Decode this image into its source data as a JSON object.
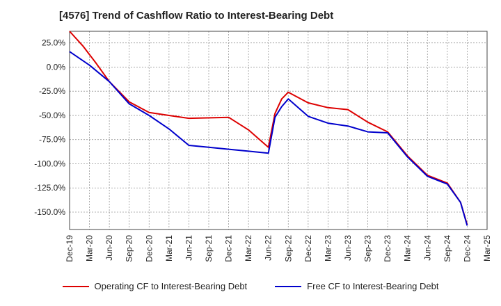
{
  "chart_data": {
    "type": "line",
    "title": "[4576]  Trend of Cashflow Ratio to Interest-Bearing Debt",
    "xlabel": "",
    "ylabel": "",
    "x_ticks": [
      "Dec-19",
      "Mar-20",
      "Jun-20",
      "Sep-20",
      "Dec-20",
      "Mar-21",
      "Jun-21",
      "Sep-21",
      "Dec-21",
      "Mar-22",
      "Jun-22",
      "Sep-22",
      "Dec-22",
      "Mar-23",
      "Jun-23",
      "Sep-23",
      "Dec-23",
      "Mar-24",
      "Jun-24",
      "Sep-24",
      "Dec-24",
      "Mar-25"
    ],
    "y_ticks": [
      "25.0%",
      "0.0%",
      "-25.0%",
      "-50.0%",
      "-75.0%",
      "-100.0%",
      "-125.0%",
      "-150.0%"
    ],
    "y_tick_values": [
      25,
      0,
      -25,
      -50,
      -75,
      -100,
      -125,
      -150
    ],
    "ylim": [
      -168,
      37
    ],
    "grid": true,
    "legend_position": "bottom",
    "series": [
      {
        "name": "Operating CF to Interest-Bearing Debt",
        "color": "#dd0000",
        "points": [
          [
            "Dec-19",
            37
          ],
          [
            "Feb-20",
            22
          ],
          [
            "Apr-20",
            4
          ],
          [
            "Jun-20",
            -15
          ],
          [
            "Sep-20",
            -36
          ],
          [
            "Dec-20",
            -47
          ],
          [
            "Mar-21",
            -50
          ],
          [
            "Jun-21",
            -53
          ],
          [
            "Dec-21",
            -52
          ],
          [
            "Mar-22",
            -65
          ],
          [
            "Jun-22",
            -83
          ],
          [
            "Jul-22",
            -48
          ],
          [
            "Aug-22",
            -33
          ],
          [
            "Sep-22",
            -26
          ],
          [
            "Dec-22",
            -37
          ],
          [
            "Mar-23",
            -42
          ],
          [
            "Jun-23",
            -44
          ],
          [
            "Sep-23",
            -57
          ],
          [
            "Dec-23",
            -67
          ],
          [
            "Mar-24",
            -92
          ],
          [
            "Jun-24",
            -112
          ],
          [
            "Sep-24",
            -120
          ],
          [
            "Nov-24",
            -140
          ],
          [
            "Dec-24",
            -163
          ]
        ]
      },
      {
        "name": "Free CF to Interest-Bearing Debt",
        "color": "#0000cc",
        "points": [
          [
            "Dec-19",
            16
          ],
          [
            "Mar-20",
            2
          ],
          [
            "Jun-20",
            -15
          ],
          [
            "Sep-20",
            -38
          ],
          [
            "Dec-20",
            -50
          ],
          [
            "Mar-21",
            -64
          ],
          [
            "Jun-21",
            -81
          ],
          [
            "Sep-21",
            -83
          ],
          [
            "Dec-21",
            -85
          ],
          [
            "Mar-22",
            -87
          ],
          [
            "Jun-22",
            -89
          ],
          [
            "Jul-22",
            -52
          ],
          [
            "Aug-22",
            -41
          ],
          [
            "Sep-22",
            -33
          ],
          [
            "Dec-22",
            -51
          ],
          [
            "Mar-23",
            -58
          ],
          [
            "Jun-23",
            -61
          ],
          [
            "Sep-23",
            -67
          ],
          [
            "Dec-23",
            -68
          ],
          [
            "Mar-24",
            -93
          ],
          [
            "Jun-24",
            -113
          ],
          [
            "Sep-24",
            -121
          ],
          [
            "Nov-24",
            -140
          ],
          [
            "Dec-24",
            -164
          ]
        ]
      }
    ]
  }
}
